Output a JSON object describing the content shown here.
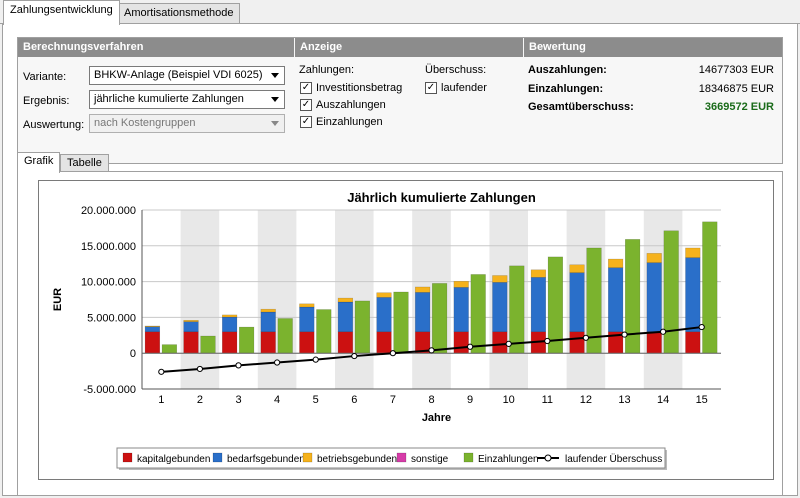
{
  "tabs": [
    "Zahlungsentwicklung",
    "Amortisationsmethode"
  ],
  "berechnung": {
    "header": "Berechnungsverfahren",
    "variante_label": "Variante:",
    "variante_value": "BHKW-Anlage (Beispiel VDI 6025)",
    "ergebnis_label": "Ergebnis:",
    "ergebnis_value": "jährliche kumulierte Zahlungen",
    "auswertung_label": "Auswertung:",
    "auswertung_value": "nach Kostengruppen"
  },
  "anzeige": {
    "header": "Anzeige",
    "zahlungen_label": "Zahlungen:",
    "cb1": "Investitionsbetrag",
    "cb2": "Auszahlungen",
    "cb3": "Einzahlungen",
    "ueberschuss_label": "Überschuss:",
    "cb4": "laufender",
    "check_mark": "✓"
  },
  "bewertung": {
    "header": "Bewertung",
    "aus_label": "Auszahlungen:",
    "aus_value": "14677303 EUR",
    "ein_label": "Einzahlungen:",
    "ein_value": "18346875 EUR",
    "ges_label": "Gesamtüberschuss:",
    "ges_value": "3669572 EUR",
    "ges_color": "#1a6b1a"
  },
  "subtabs": [
    "Grafik",
    "Tabelle"
  ],
  "chart_data": {
    "type": "bar",
    "title": "Jährlich kumulierte Zahlungen",
    "xlabel": "Jahre",
    "ylabel": "EUR",
    "ylim": [
      -5000000,
      20000000
    ],
    "yticks": [
      20000000,
      15000000,
      10000000,
      5000000,
      0,
      -5000000
    ],
    "ytick_labels": [
      "20.000.000",
      "15.000.000",
      "10.000.000",
      "5.000.000",
      "0",
      "-5.000.000"
    ],
    "categories": [
      "1",
      "2",
      "3",
      "4",
      "5",
      "6",
      "7",
      "8",
      "9",
      "10",
      "11",
      "12",
      "13",
      "14",
      "15"
    ],
    "series": [
      {
        "name": "kapitalgebunden",
        "color": "#cc1111",
        "values": [
          3000000,
          3000000,
          3000000,
          3000000,
          3000000,
          3000000,
          3000000,
          3000000,
          3000000,
          3000000,
          3000000,
          3000000,
          3000000,
          3000000,
          3000000
        ]
      },
      {
        "name": "bedarfsgebunden",
        "color": "#2a6fc9",
        "values": [
          700000,
          1400000,
          2050000,
          2750000,
          3450000,
          4150000,
          4800000,
          5500000,
          6200000,
          6900000,
          7600000,
          8250000,
          8950000,
          9650000,
          10350000
        ]
      },
      {
        "name": "betriebsgebunden",
        "color": "#f5b21c",
        "values": [
          100000,
          200000,
          300000,
          400000,
          450000,
          550000,
          650000,
          750000,
          850000,
          950000,
          1050000,
          1100000,
          1200000,
          1300000,
          1350000
        ]
      },
      {
        "name": "sonstige",
        "color": "#d63ca8",
        "values": [
          0,
          0,
          0,
          0,
          0,
          0,
          0,
          0,
          0,
          0,
          0,
          0,
          0,
          0,
          0
        ]
      },
      {
        "name": "Einzahlungen",
        "color": "#7bb32e",
        "values": [
          1200000,
          2400000,
          3650000,
          4850000,
          6100000,
          7300000,
          8550000,
          9750000,
          11000000,
          12200000,
          13450000,
          14700000,
          15900000,
          17100000,
          18350000
        ]
      },
      {
        "name": "laufender Überschuss",
        "color": "#000000",
        "type": "line",
        "values": [
          -2600000,
          -2200000,
          -1700000,
          -1300000,
          -900000,
          -400000,
          0,
          400000,
          900000,
          1300000,
          1700000,
          2150000,
          2600000,
          3000000,
          3650000
        ]
      }
    ],
    "legend_position": "bottom",
    "grid": true
  }
}
